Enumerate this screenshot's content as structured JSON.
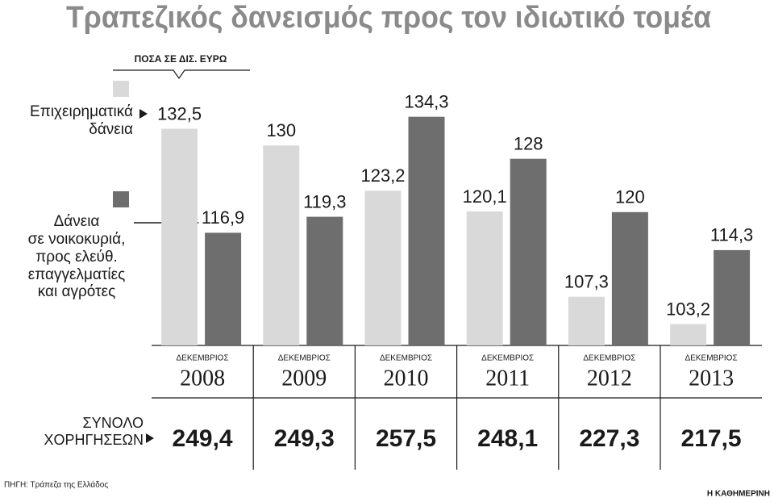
{
  "chart_data": {
    "type": "bar",
    "title": "Τραπεζικός δανεισμός προς τον ιδιωτικό τομέα",
    "unit_label": "ΠΟΣΑ ΣΕ ΔΙΣ. ΕΥΡΩ",
    "category_caption": "ΔΕΚΕΜΒΡΙΟΣ",
    "categories": [
      "2008",
      "2009",
      "2010",
      "2011",
      "2012",
      "2013"
    ],
    "series": [
      {
        "name": "Επιχειρηματικά\nδάνεια",
        "color": "#d9d9d9",
        "values": [
          132.5,
          130,
          123.2,
          120.1,
          107.3,
          103.2
        ],
        "value_labels": [
          "132,5",
          "130",
          "123,2",
          "120,1",
          "107,3",
          "103,2"
        ]
      },
      {
        "name": "Δάνεια\nσε νοικοκυριά,\nπρος ελεύθ.\nεπαγγελματίες\nκαι αγρότες",
        "color": "#6e6e6e",
        "values": [
          116.9,
          119.3,
          134.3,
          128,
          120,
          114.3
        ],
        "value_labels": [
          "116,9",
          "119,3",
          "134,3",
          "128",
          "120",
          "114,3"
        ]
      }
    ],
    "ylim": [
      100,
      150
    ],
    "totals_label": "ΣΥΝΟΛΟ\nΧΟΡΗΓΗΣΕΩΝ",
    "totals": [
      249.4,
      249.3,
      257.5,
      248.1,
      227.3,
      217.5
    ],
    "totals_labels": [
      "249,4",
      "249,3",
      "257,5",
      "248,1",
      "227,3",
      "217,5"
    ],
    "source": "ΠΗΓΗ: Τράπεζα της Ελλάδος",
    "credit": "Η ΚΑΘΗΜΕΡΙΝΗ"
  }
}
